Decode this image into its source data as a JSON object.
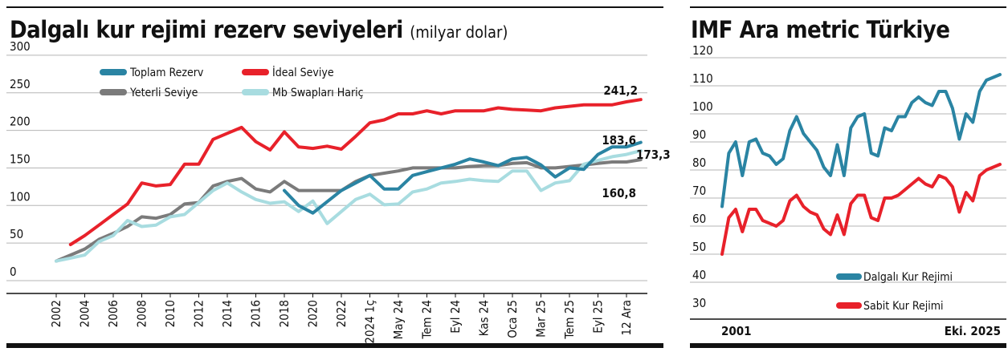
{
  "left": {
    "title": "Dalgalı kur rejimi rezerv seviyeleri",
    "subtitle": "(milyar dolar)"
  },
  "right": {
    "title": "IMF Ara metric Türkiye"
  },
  "chart_data": [
    {
      "type": "line",
      "title": "Dalgalı kur rejimi rezerv seviyeleri",
      "subtitle": "(milyar dolar)",
      "ylim": [
        0,
        300
      ],
      "yticks": [
        0,
        50,
        100,
        150,
        200,
        250,
        300
      ],
      "grid": true,
      "legend": "top",
      "categories": [
        "2002",
        "2004",
        "2006",
        "2008",
        "2010",
        "2012",
        "2014",
        "2016",
        "2018",
        "2020",
        "2022",
        "2024 1ç",
        "May 24",
        "Tem 24",
        "Eyl 24",
        "Kas 24",
        "Oca 25",
        "Mar 25",
        "Tem 25",
        "Eyl 25",
        "12 Ara"
      ],
      "series": [
        {
          "name": "Toplam Rezerv",
          "color": "#2a84a3",
          "end_label": "183,6",
          "points": [
            [
              8.0,
              120
            ],
            [
              8.5,
              100
            ],
            [
              9,
              90
            ],
            [
              9.5,
              105
            ],
            [
              10,
              120
            ],
            [
              10.5,
              130
            ],
            [
              11,
              140
            ],
            [
              11.5,
              122
            ],
            [
              12,
              122
            ],
            [
              12.5,
              140
            ],
            [
              13,
              145
            ],
            [
              13.5,
              150
            ],
            [
              14,
              155
            ],
            [
              14.5,
              162
            ],
            [
              15,
              158
            ],
            [
              15.5,
              153
            ],
            [
              16,
              162
            ],
            [
              16.5,
              164
            ],
            [
              17,
              154
            ],
            [
              17.5,
              138
            ],
            [
              18,
              150
            ],
            [
              18.5,
              148
            ],
            [
              19,
              168
            ],
            [
              19.5,
              178
            ],
            [
              20,
              178
            ],
            [
              20.5,
              184
            ]
          ]
        },
        {
          "name": "Yeterli Seviye",
          "color": "#7b7b7b",
          "end_label": "160,8",
          "points": [
            [
              0,
              26
            ],
            [
              0.5,
              34
            ],
            [
              1,
              42
            ],
            [
              1.5,
              55
            ],
            [
              2,
              63
            ],
            [
              2.5,
              72
            ],
            [
              3,
              85
            ],
            [
              3.5,
              83
            ],
            [
              4,
              88
            ],
            [
              4.5,
              102
            ],
            [
              5,
              104
            ],
            [
              5.5,
              126
            ],
            [
              6,
              132
            ],
            [
              6.5,
              136
            ],
            [
              7,
              122
            ],
            [
              7.5,
              118
            ],
            [
              8,
              132
            ],
            [
              8.5,
              120
            ],
            [
              9,
              120
            ],
            [
              9.5,
              120
            ],
            [
              10,
              120
            ],
            [
              10.5,
              132
            ],
            [
              11,
              140
            ],
            [
              11.5,
              143
            ],
            [
              12,
              146
            ],
            [
              12.5,
              150
            ],
            [
              13,
              150
            ],
            [
              13.5,
              150
            ],
            [
              14,
              150
            ],
            [
              14.5,
              152
            ],
            [
              15,
              153
            ],
            [
              15.5,
              153
            ],
            [
              16,
              156
            ],
            [
              16.5,
              157
            ],
            [
              17,
              150
            ],
            [
              17.5,
              150
            ],
            [
              18,
              152
            ],
            [
              18.5,
              154
            ],
            [
              19,
              156
            ],
            [
              19.5,
              158
            ],
            [
              20,
              158
            ],
            [
              20.5,
              161
            ]
          ]
        },
        {
          "name": "İdeal Seviye",
          "color": "#e8212a",
          "end_label": "241,2",
          "points": [
            [
              0.5,
              48
            ],
            [
              1,
              60
            ],
            [
              1.5,
              74
            ],
            [
              2,
              88
            ],
            [
              2.5,
              102
            ],
            [
              3,
              130
            ],
            [
              3.5,
              126
            ],
            [
              4,
              128
            ],
            [
              4.5,
              155
            ],
            [
              5,
              155
            ],
            [
              5.5,
              188
            ],
            [
              6,
              196
            ],
            [
              6.5,
              204
            ],
            [
              7,
              185
            ],
            [
              7.5,
              174
            ],
            [
              8,
              198
            ],
            [
              8.5,
              178
            ],
            [
              9,
              176
            ],
            [
              9.5,
              179
            ],
            [
              10,
              175
            ],
            [
              10.5,
              192
            ],
            [
              11,
              210
            ],
            [
              11.5,
              214
            ],
            [
              12,
              222
            ],
            [
              12.5,
              222
            ],
            [
              13,
              226
            ],
            [
              13.5,
              222
            ],
            [
              14,
              226
            ],
            [
              14.5,
              226
            ],
            [
              15,
              226
            ],
            [
              15.5,
              230
            ],
            [
              16,
              228
            ],
            [
              16.5,
              227
            ],
            [
              17,
              226
            ],
            [
              17.5,
              230
            ],
            [
              18,
              232
            ],
            [
              18.5,
              234
            ],
            [
              19,
              234
            ],
            [
              19.5,
              234
            ],
            [
              20,
              238
            ],
            [
              20.5,
              241
            ]
          ]
        },
        {
          "name": "Mb Swapları Hariç",
          "color": "#a8dce0",
          "end_label": "173,3",
          "points": [
            [
              0,
              26
            ],
            [
              0.5,
              30
            ],
            [
              1,
              34
            ],
            [
              1.5,
              52
            ],
            [
              2,
              60
            ],
            [
              2.5,
              80
            ],
            [
              3,
              72
            ],
            [
              3.5,
              74
            ],
            [
              4,
              85
            ],
            [
              4.5,
              88
            ],
            [
              5,
              104
            ],
            [
              5.5,
              120
            ],
            [
              6,
              130
            ],
            [
              6.5,
              118
            ],
            [
              7,
              108
            ],
            [
              7.5,
              103
            ],
            [
              8,
              105
            ],
            [
              8.5,
              92
            ],
            [
              9,
              106
            ],
            [
              9.5,
              76
            ],
            [
              10,
              92
            ],
            [
              10.5,
              108
            ],
            [
              11,
              115
            ],
            [
              11.5,
              101
            ],
            [
              12,
              102
            ],
            [
              12.5,
              118
            ],
            [
              13,
              122
            ],
            [
              13.5,
              130
            ],
            [
              14,
              132
            ],
            [
              14.5,
              135
            ],
            [
              15,
              133
            ],
            [
              15.5,
              132
            ],
            [
              16,
              146
            ],
            [
              16.5,
              146
            ],
            [
              17,
              120
            ],
            [
              17.5,
              130
            ],
            [
              18,
              133
            ],
            [
              18.5,
              155
            ],
            [
              19,
              160
            ],
            [
              19.5,
              165
            ],
            [
              20,
              168
            ],
            [
              20.5,
              173
            ]
          ]
        }
      ]
    },
    {
      "type": "line",
      "title": "IMF Ara metric Türkiye",
      "ylim": [
        30,
        120
      ],
      "yticks": [
        30,
        40,
        50,
        60,
        70,
        80,
        90,
        100,
        110,
        120
      ],
      "grid": true,
      "legend": "bottom-right",
      "x_labels": [
        "2001",
        "Eki. 2025"
      ],
      "series": [
        {
          "name": "Dalgalı Kur Rejimi",
          "color": "#2a84a3",
          "points": [
            [
              0,
              67
            ],
            [
              1,
              86
            ],
            [
              2,
              90
            ],
            [
              3,
              78
            ],
            [
              4,
              90
            ],
            [
              5,
              91
            ],
            [
              6,
              86
            ],
            [
              7,
              85
            ],
            [
              8,
              82
            ],
            [
              9,
              84
            ],
            [
              10,
              94
            ],
            [
              11,
              99
            ],
            [
              12,
              93
            ],
            [
              13,
              90
            ],
            [
              14,
              87
            ],
            [
              15,
              81
            ],
            [
              16,
              78
            ],
            [
              17,
              89
            ],
            [
              18,
              78
            ],
            [
              19,
              95
            ],
            [
              20,
              99
            ],
            [
              21,
              100
            ],
            [
              22,
              86
            ],
            [
              23,
              85
            ],
            [
              24,
              95
            ],
            [
              25,
              94
            ],
            [
              26,
              99
            ],
            [
              27,
              99
            ],
            [
              28,
              104
            ],
            [
              29,
              106
            ],
            [
              30,
              104
            ],
            [
              31,
              103
            ],
            [
              32,
              108
            ],
            [
              33,
              108
            ],
            [
              34,
              102
            ],
            [
              35,
              91
            ],
            [
              36,
              100
            ],
            [
              37,
              97
            ],
            [
              38,
              108
            ],
            [
              39,
              112
            ],
            [
              40,
              113
            ],
            [
              41,
              114
            ]
          ]
        },
        {
          "name": "Sabit Kur Rejimi",
          "color": "#e8212a",
          "points": [
            [
              0,
              50
            ],
            [
              1,
              63
            ],
            [
              2,
              66
            ],
            [
              3,
              58
            ],
            [
              4,
              66
            ],
            [
              5,
              66
            ],
            [
              6,
              62
            ],
            [
              7,
              61
            ],
            [
              8,
              60
            ],
            [
              9,
              62
            ],
            [
              10,
              69
            ],
            [
              11,
              71
            ],
            [
              12,
              67
            ],
            [
              13,
              65
            ],
            [
              14,
              64
            ],
            [
              15,
              59
            ],
            [
              16,
              57
            ],
            [
              17,
              64
            ],
            [
              18,
              57
            ],
            [
              19,
              68
            ],
            [
              20,
              71
            ],
            [
              21,
              71
            ],
            [
              22,
              63
            ],
            [
              23,
              62
            ],
            [
              24,
              70
            ],
            [
              25,
              70
            ],
            [
              26,
              71
            ],
            [
              27,
              73
            ],
            [
              28,
              75
            ],
            [
              29,
              77
            ],
            [
              30,
              75
            ],
            [
              31,
              74
            ],
            [
              32,
              78
            ],
            [
              33,
              77
            ],
            [
              34,
              74
            ],
            [
              35,
              65
            ],
            [
              36,
              72
            ],
            [
              37,
              69
            ],
            [
              38,
              78
            ],
            [
              39,
              80
            ],
            [
              40,
              81
            ],
            [
              41,
              82
            ]
          ]
        }
      ]
    }
  ]
}
